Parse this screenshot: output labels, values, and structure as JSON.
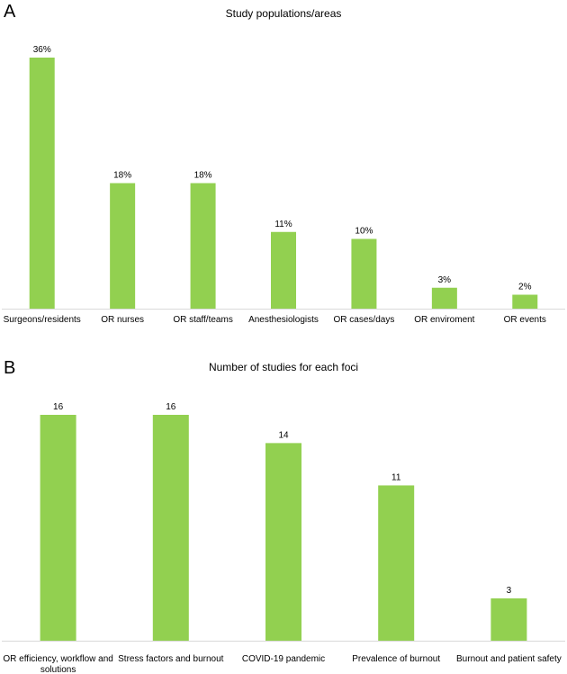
{
  "panel_a": {
    "letter": "A"
  },
  "panel_b": {
    "letter": "B"
  },
  "chart_data": [
    {
      "type": "bar",
      "title": "Study populations/areas",
      "categories": [
        "Surgeons/residents",
        "OR nurses",
        "OR staff/teams",
        "Anesthesiologists",
        "OR cases/days",
        "OR enviroment",
        "OR events"
      ],
      "values": [
        36,
        18,
        18,
        11,
        10,
        3,
        2
      ],
      "data_labels": [
        "36%",
        "18%",
        "18%",
        "11%",
        "10%",
        "3%",
        "2%"
      ],
      "xlabel": "",
      "ylabel": "",
      "ylim": [
        0,
        36
      ],
      "grid": false,
      "color": "#92d050"
    },
    {
      "type": "bar",
      "title": "Number of studies for each foci",
      "categories": [
        [
          "OR efficiency, workflow and",
          "solutions"
        ],
        [
          "Stress factors and burnout"
        ],
        [
          "COVID-19 pandemic"
        ],
        [
          "Prevalence of burnout"
        ],
        [
          "Burnout and patient safety"
        ]
      ],
      "values": [
        16,
        16,
        14,
        11,
        3
      ],
      "data_labels": [
        "16",
        "16",
        "14",
        "11",
        "3"
      ],
      "xlabel": "",
      "ylabel": "",
      "ylim": [
        0,
        16
      ],
      "grid": false,
      "color": "#92d050"
    }
  ]
}
